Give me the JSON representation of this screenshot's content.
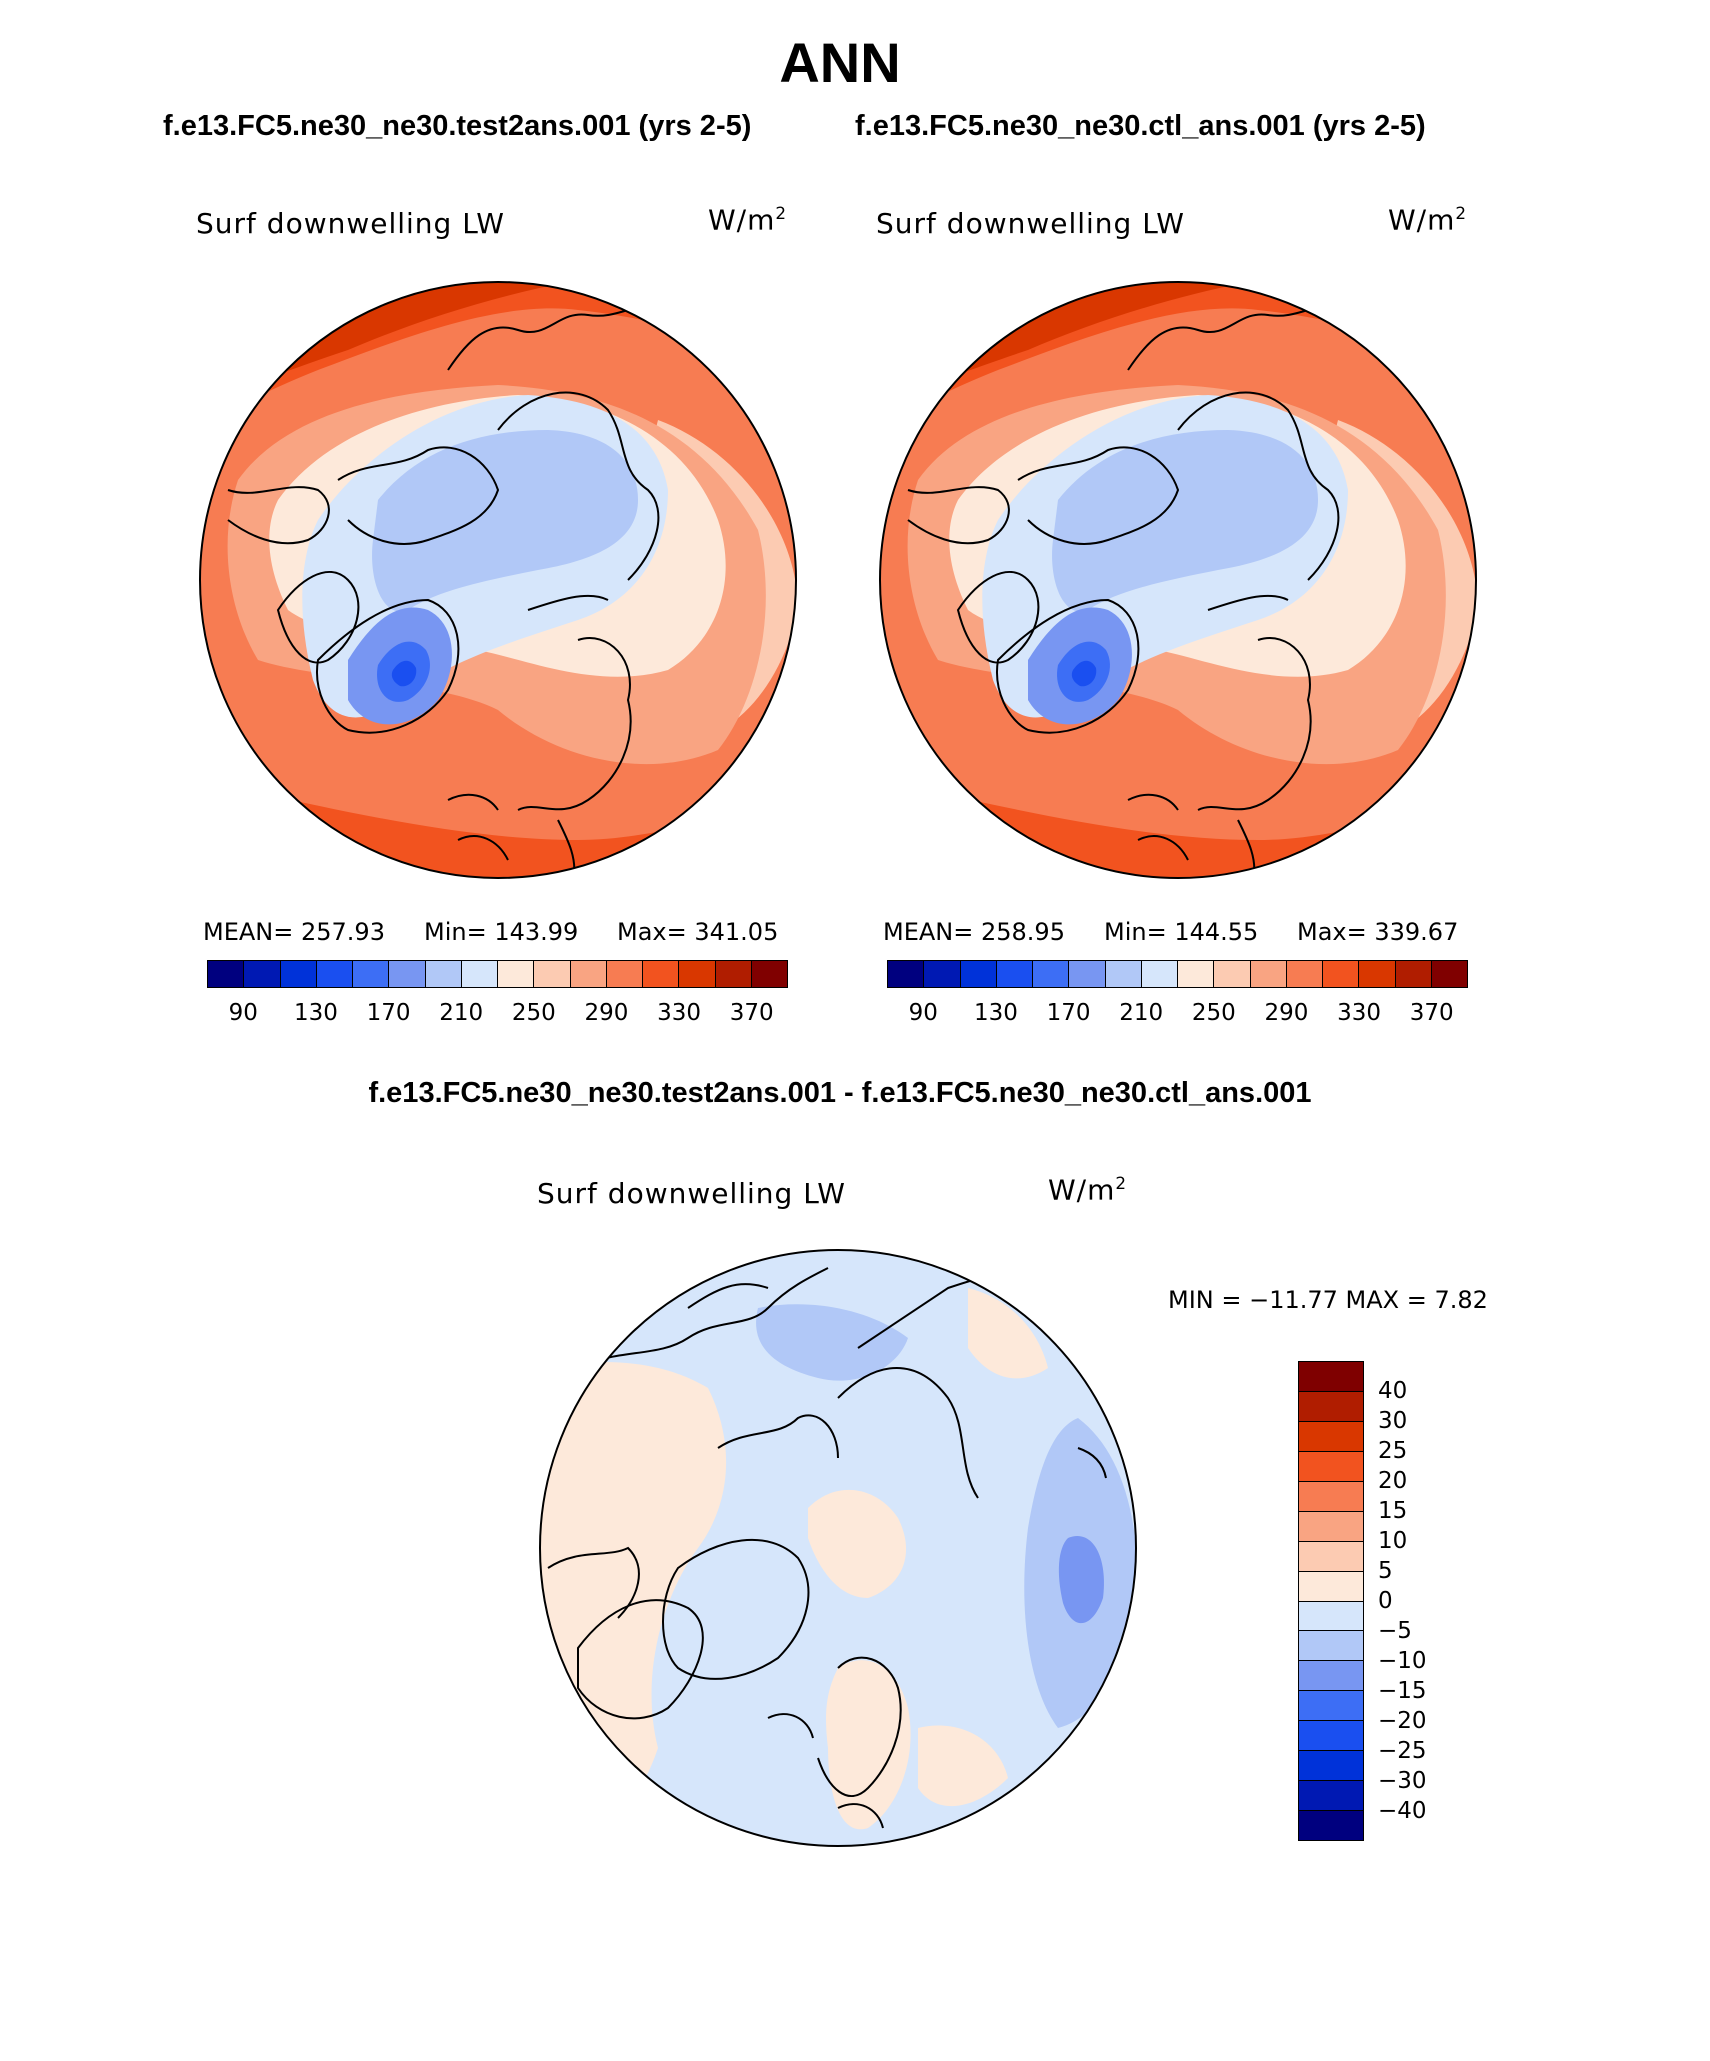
{
  "title": "ANN",
  "panels": [
    {
      "case": "f.e13.FC5.ne30_ne30.test2ans.001 (yrs 2-5)",
      "variable": "Surf downwelling LW",
      "units_base": "W/m",
      "units_exp": "2",
      "stats": {
        "mean": "MEAN= 257.93",
        "min": "Min= 143.99",
        "max": "Max= 341.05"
      }
    },
    {
      "case": "f.e13.FC5.ne30_ne30.ctl_ans.001 (yrs 2-5)",
      "variable": "Surf downwelling LW",
      "units_base": "W/m",
      "units_exp": "2",
      "stats": {
        "mean": "MEAN= 258.95",
        "min": "Min= 144.55",
        "max": "Max= 339.67"
      }
    }
  ],
  "abs_colorbar": {
    "colors": [
      "#00007f",
      "#0019b3",
      "#0032d9",
      "#1a4ff0",
      "#3d6ef5",
      "#7896f2",
      "#b1c8f7",
      "#d6e6fb",
      "#fde9da",
      "#fccbb2",
      "#f9a482",
      "#f77c52",
      "#f2531f",
      "#d93700",
      "#b01d00",
      "#800000"
    ],
    "labels": [
      "90",
      "130",
      "170",
      "210",
      "250",
      "290",
      "330",
      "370"
    ]
  },
  "diff": {
    "title": "f.e13.FC5.ne30_ne30.test2ans.001 - f.e13.FC5.ne30_ne30.ctl_ans.001",
    "variable": "Surf downwelling LW",
    "units_base": "W/m",
    "units_exp": "2",
    "minmax": "MIN = −11.77 MAX =    7.82",
    "colors": [
      "#7f0000",
      "#b01d00",
      "#d93700",
      "#f2531f",
      "#f77c52",
      "#f9a482",
      "#fccbb2",
      "#fde9da",
      "#d6e6fb",
      "#b1c8f7",
      "#7896f2",
      "#3d6ef5",
      "#1a4ff0",
      "#0032d9",
      "#0019b3",
      "#00007f"
    ],
    "labels": [
      "40",
      "30",
      "25",
      "20",
      "15",
      "10",
      "5",
      "0",
      "−5",
      "−10",
      "−15",
      "−20",
      "−25",
      "−30",
      "−40"
    ]
  }
}
